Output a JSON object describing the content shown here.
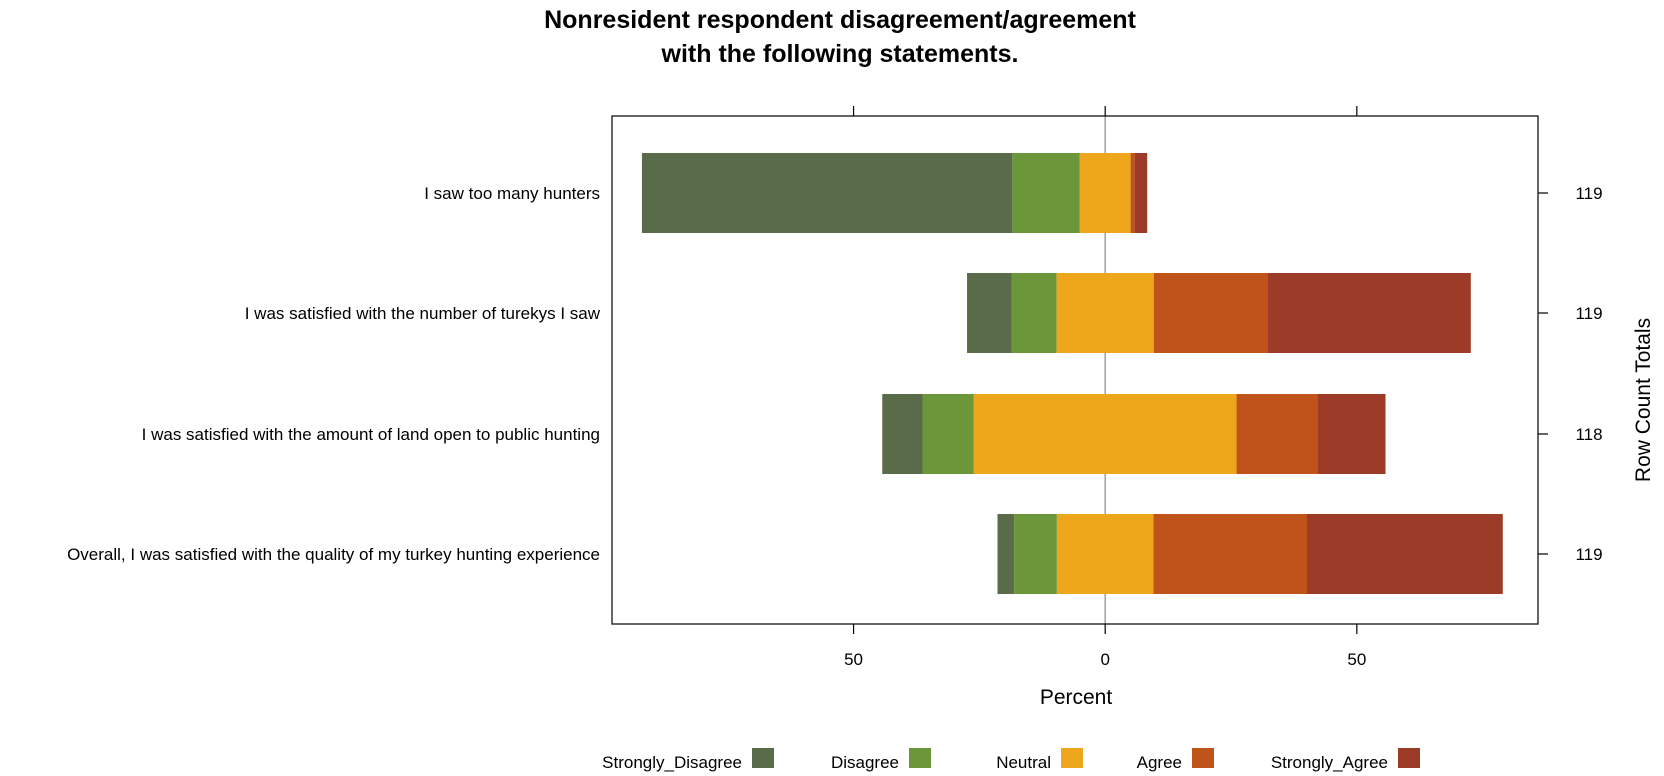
{
  "chart_data": {
    "type": "bar",
    "orientation": "horizontal",
    "stacking": "diverging",
    "title_lines": [
      "Nonresident respondent disagreement/agreement",
      "with the following statements."
    ],
    "categories": [
      "I saw too many hunters",
      "I was satisfied with the number of turekys I saw",
      "I was satisfied with the amount of land open to public hunting",
      "Overall, I was satisfied with the quality of my turkey hunting experience"
    ],
    "series": [
      {
        "name": "Strongly_Disagree",
        "color": "#5a6b4a",
        "values": [
          73.6,
          8.9,
          8.0,
          3.3
        ]
      },
      {
        "name": "Disagree",
        "color": "#6b963a",
        "values": [
          13.4,
          8.9,
          10.2,
          8.5
        ]
      },
      {
        "name": "Neutral",
        "color": "#eea71a",
        "values": [
          10.1,
          19.3,
          52.2,
          19.2
        ]
      },
      {
        "name": "Agree",
        "color": "#c0531a",
        "values": [
          0.8,
          22.7,
          16.1,
          30.5
        ]
      },
      {
        "name": "Strongly_Agree",
        "color": "#9b3b28",
        "values": [
          2.5,
          40.3,
          13.5,
          38.9
        ]
      }
    ],
    "xlabel": "Percent",
    "xlim": [
      -98,
      86
    ],
    "xticks": [
      -50,
      0,
      50
    ],
    "xtick_labels": [
      "50",
      "0",
      "50"
    ],
    "right_axis_label": "Row Count Totals",
    "row_totals": [
      "119",
      "119",
      "118",
      "119"
    ],
    "legend_position": "bottom"
  }
}
